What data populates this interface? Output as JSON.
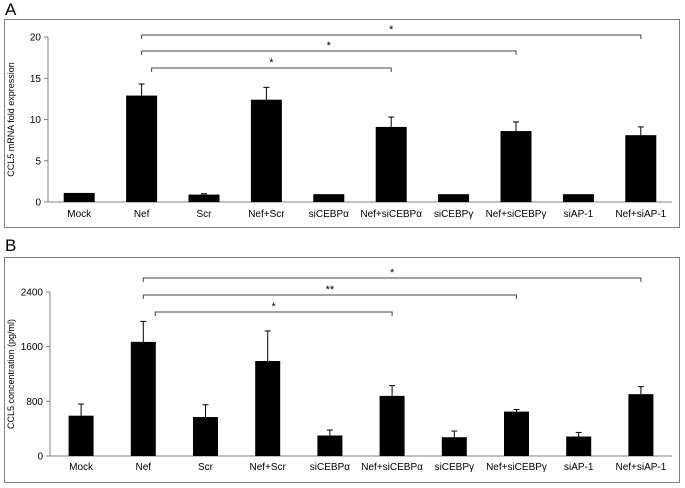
{
  "chart_data": [
    {
      "panel": "A",
      "type": "bar",
      "ylabel": "CCL5 mRNA fold expression",
      "xlabel": "",
      "title": "",
      "categories": [
        "Mock",
        "Nef",
        "Scr",
        "Nef+Scr",
        "siCEBPα",
        "Nef+siCEBPα",
        "siCEBPγ",
        "Nef+siCEBPγ",
        "siAP-1",
        "Nef+siAP-1"
      ],
      "values": [
        1.1,
        12.9,
        0.9,
        12.4,
        0.95,
        9.1,
        0.95,
        8.6,
        0.95,
        8.1
      ],
      "errors": [
        0,
        1.4,
        0.1,
        1.5,
        0,
        1.2,
        0,
        1.1,
        0,
        1.0
      ],
      "ylim": [
        0,
        20
      ],
      "yticks": [
        0,
        5,
        10,
        15,
        20
      ],
      "bar_color": "#000000",
      "grid": false,
      "significance": [
        {
          "from": 1,
          "to": 5,
          "label": "*"
        },
        {
          "from": 1,
          "to": 7,
          "label": "*"
        },
        {
          "from": 1,
          "to": 9,
          "label": "*"
        }
      ]
    },
    {
      "panel": "B",
      "type": "bar",
      "ylabel": "CCL5 concentration (pg/ml)",
      "xlabel": "",
      "title": "",
      "categories": [
        "Mock",
        "Nef",
        "Scr",
        "Nef+Scr",
        "siCEBPα",
        "Nef+siCEBPα",
        "siCEBPγ",
        "Nef+siCEBPγ",
        "siAP-1",
        "Nef+siAP-1"
      ],
      "values": [
        590,
        1670,
        570,
        1390,
        300,
        880,
        275,
        650,
        285,
        905
      ],
      "errors": [
        170,
        300,
        180,
        440,
        80,
        150,
        90,
        30,
        60,
        110
      ],
      "ylim": [
        0,
        2400
      ],
      "yticks": [
        0,
        800,
        1600,
        2400
      ],
      "bar_color": "#000000",
      "grid": false,
      "significance": [
        {
          "from": 1,
          "to": 5,
          "label": "*"
        },
        {
          "from": 1,
          "to": 7,
          "label": "**"
        },
        {
          "from": 1,
          "to": 9,
          "label": "*"
        }
      ]
    }
  ]
}
